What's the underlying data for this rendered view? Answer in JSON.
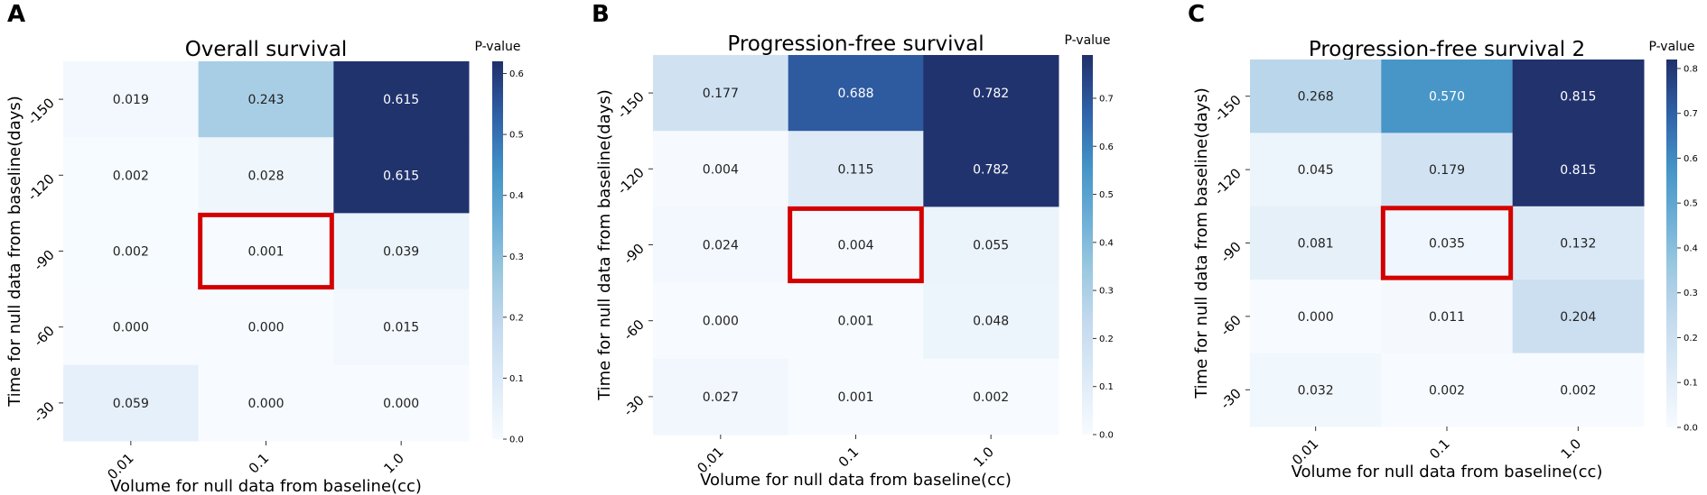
{
  "chart_data": [
    {
      "type": "heatmap",
      "panel_label": "A",
      "title": "Overall survival",
      "xlabel": "Volume for null data from baseline(cc)",
      "ylabel": "Time for null data from baseline(days)",
      "x_categories": [
        "0.01",
        "0.1",
        "1.0"
      ],
      "y_categories": [
        "-150",
        "-120",
        "-90",
        "-60",
        "-30"
      ],
      "values": [
        [
          0.019,
          0.243,
          0.615
        ],
        [
          0.002,
          0.028,
          0.615
        ],
        [
          0.002,
          0.001,
          0.039
        ],
        [
          0.0,
          0.0,
          0.015
        ],
        [
          0.059,
          0.0,
          0.0
        ]
      ],
      "cell_labels": [
        [
          "0.019",
          "0.243",
          "0.615"
        ],
        [
          "0.002",
          "0.028",
          "0.615"
        ],
        [
          "0.002",
          "0.001",
          "0.039"
        ],
        [
          "0.000",
          "0.000",
          "0.015"
        ],
        [
          "0.059",
          "0.000",
          "0.000"
        ]
      ],
      "highlighted_cell": {
        "row": 2,
        "col": 1
      },
      "colorbar": {
        "label": "P-value",
        "range": [
          0,
          0.62
        ],
        "ticks": [
          0.0,
          0.1,
          0.2,
          0.3,
          0.4,
          0.5,
          0.6
        ],
        "tick_labels": [
          "0.0",
          "0.1",
          "0.2",
          "0.3",
          "0.4",
          "0.5",
          "0.6"
        ]
      }
    },
    {
      "type": "heatmap",
      "panel_label": "B",
      "title": "Progression-free survival",
      "xlabel": "Volume for null data from baseline(cc)",
      "ylabel": "Time for null data from baseline(days)",
      "x_categories": [
        "0.01",
        "0.1",
        "1.0"
      ],
      "y_categories": [
        "-150",
        "-120",
        "-90",
        "-60",
        "-30"
      ],
      "values": [
        [
          0.177,
          0.688,
          0.782
        ],
        [
          0.004,
          0.115,
          0.782
        ],
        [
          0.024,
          0.004,
          0.055
        ],
        [
          0.0,
          0.001,
          0.048
        ],
        [
          0.027,
          0.001,
          0.002
        ]
      ],
      "cell_labels": [
        [
          "0.177",
          "0.688",
          "0.782"
        ],
        [
          "0.004",
          "0.115",
          "0.782"
        ],
        [
          "0.024",
          "0.004",
          "0.055"
        ],
        [
          "0.000",
          "0.001",
          "0.048"
        ],
        [
          "0.027",
          "0.001",
          "0.002"
        ]
      ],
      "highlighted_cell": {
        "row": 2,
        "col": 1
      },
      "colorbar": {
        "label": "P-value",
        "range": [
          0,
          0.79
        ],
        "ticks": [
          0.0,
          0.1,
          0.2,
          0.3,
          0.4,
          0.5,
          0.6,
          0.7
        ],
        "tick_labels": [
          "0.0",
          "0.1",
          "0.2",
          "0.3",
          "0.4",
          "0.5",
          "0.6",
          "0.7"
        ]
      }
    },
    {
      "type": "heatmap",
      "panel_label": "C",
      "title": "Progression-free survival 2",
      "xlabel": "Volume for null data from baseline(cc)",
      "ylabel": "Time for null data from baseline(days)",
      "x_categories": [
        "0.01",
        "0.1",
        "1.0"
      ],
      "y_categories": [
        "-150",
        "-120",
        "-90",
        "-60",
        "-30"
      ],
      "values": [
        [
          0.268,
          0.57,
          0.815
        ],
        [
          0.045,
          0.179,
          0.815
        ],
        [
          0.081,
          0.035,
          0.132
        ],
        [
          0.0,
          0.011,
          0.204
        ],
        [
          0.032,
          0.002,
          0.002
        ]
      ],
      "cell_labels": [
        [
          "0.268",
          "0.570",
          "0.815"
        ],
        [
          "0.045",
          "0.179",
          "0.815"
        ],
        [
          "0.081",
          "0.035",
          "0.132"
        ],
        [
          "0.000",
          "0.011",
          "0.204"
        ],
        [
          "0.032",
          "0.002",
          "0.002"
        ]
      ],
      "highlighted_cell": {
        "row": 2,
        "col": 1
      },
      "colorbar": {
        "label": "P-value",
        "range": [
          0,
          0.82
        ],
        "ticks": [
          0.0,
          0.1,
          0.2,
          0.3,
          0.4,
          0.5,
          0.6,
          0.7,
          0.8
        ],
        "tick_labels": [
          "0.0",
          "0.1",
          "0.2",
          "0.3",
          "0.4",
          "0.5",
          "0.6",
          "0.7",
          "0.8"
        ]
      }
    }
  ],
  "colors": {
    "colormap": [
      "#f7fbff",
      "#deebf7",
      "#c6dbef",
      "#9ecae1",
      "#6baed6",
      "#4292c6",
      "#2f5fa6",
      "#20306a"
    ],
    "highlight_border": "#d40000",
    "text_dark": "#222222",
    "text_light": "#ffffff"
  }
}
